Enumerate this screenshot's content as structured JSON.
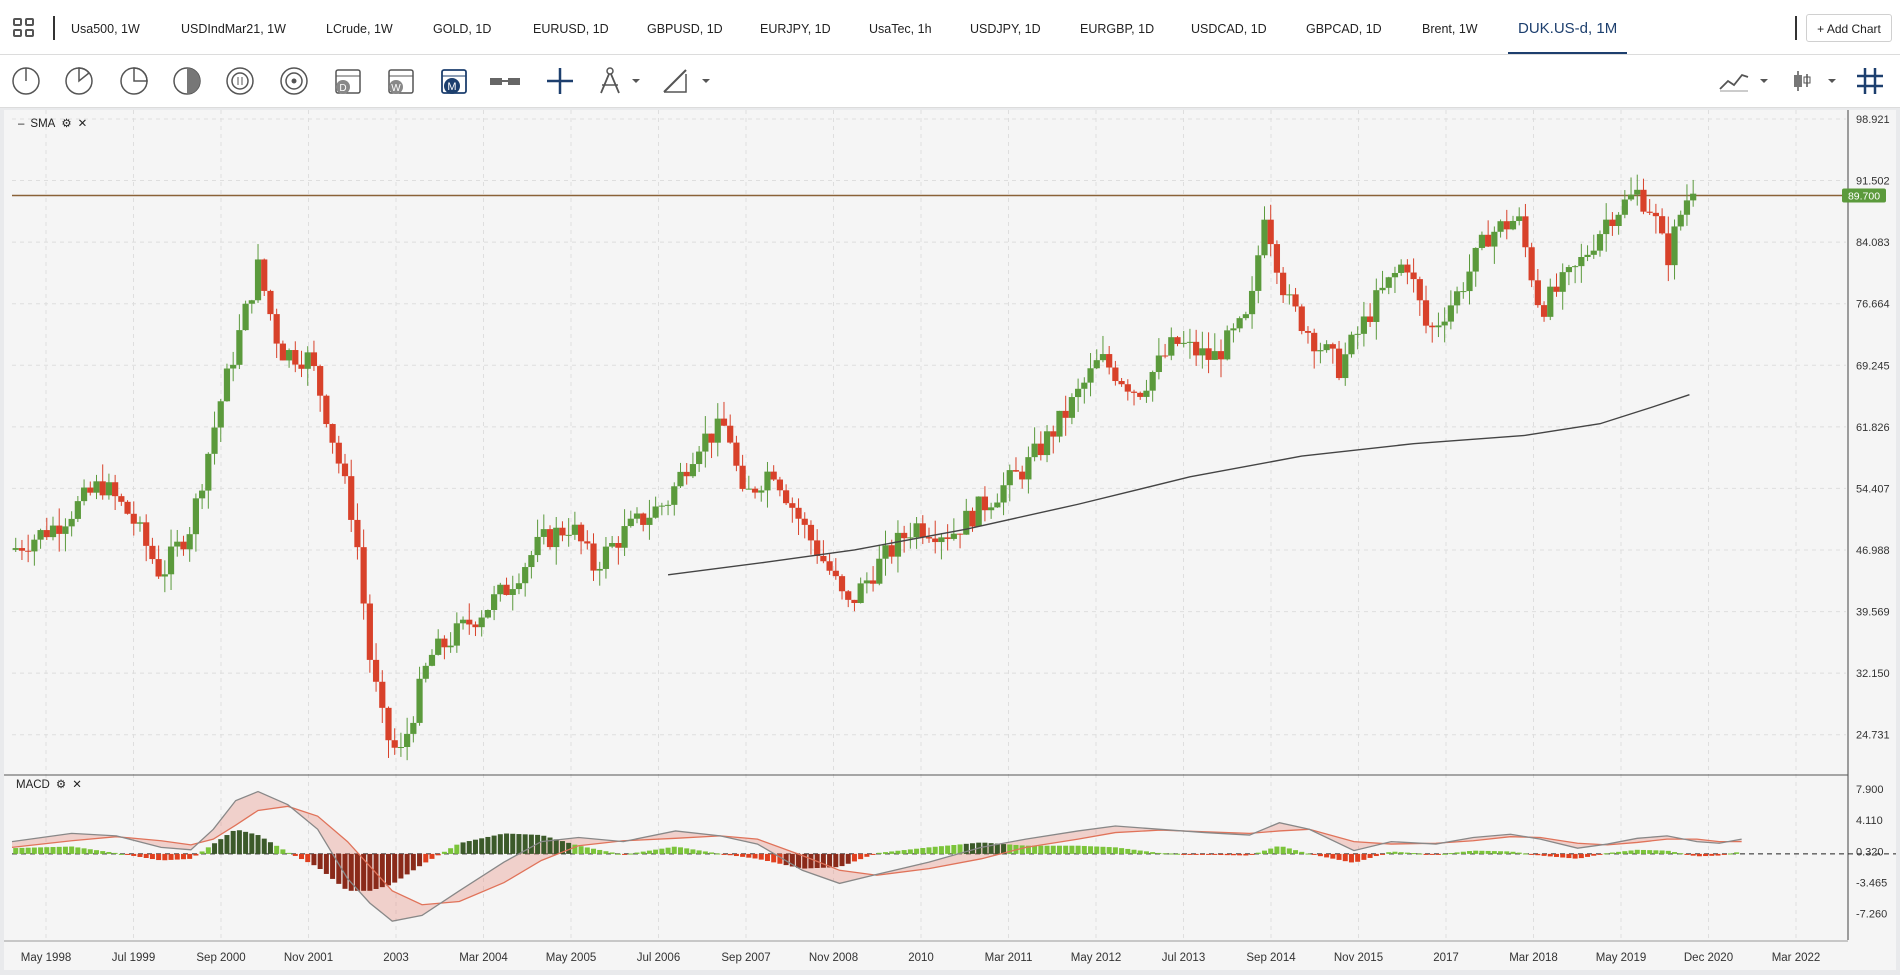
{
  "tabs": [
    {
      "label": "Usa500, 1W"
    },
    {
      "label": "USDIndMar21, 1W"
    },
    {
      "label": "LCrude, 1W"
    },
    {
      "label": "GOLD, 1D"
    },
    {
      "label": "EURUSD, 1D"
    },
    {
      "label": "GBPUSD, 1D"
    },
    {
      "label": "EURJPY, 1D"
    },
    {
      "label": "UsaTec, 1h"
    },
    {
      "label": "USDJPY, 1D"
    },
    {
      "label": "EURGBP, 1D"
    },
    {
      "label": "USDCAD, 1D"
    },
    {
      "label": "GBPCAD, 1D"
    },
    {
      "label": "Brent, 1W"
    },
    {
      "label": "DUK.US-d, 1M"
    }
  ],
  "active_tab": "DUK.US-d, 1M",
  "add_chart_label": "+ Add Chart",
  "toolbar": {
    "tools": [
      "crosshair-icon",
      "pie-quarter-icon",
      "pie-half-icon",
      "half-circle-icon",
      "circle-lines-icon",
      "circle-dot-icon",
      "calendar-d-icon",
      "calendar-w-icon",
      "calendar-m-icon",
      "bar-connector-icon",
      "crosshair-plus-icon",
      "compass-icon",
      "pencil-icon"
    ],
    "right_tools": [
      "line-chart-type-icon",
      "candle-type-icon",
      "grid-icon"
    ]
  },
  "price_indicator": {
    "name": "SMA"
  },
  "macd_indicator": {
    "name": "MACD"
  },
  "colors": {
    "up": "#5b9a3c",
    "down": "#d8412a",
    "sma": "#444444",
    "hline": "#8a6238",
    "price_tag": "#5b9a3c",
    "macd_line": "#888888",
    "signal_line": "#e0735a"
  },
  "chart_data": {
    "type": "candlestick",
    "symbol": "DUK.US-d, 1M",
    "price_axis": {
      "ticks": [
        "98.921",
        "91.502",
        "84.083",
        "76.664",
        "69.245",
        "61.826",
        "54.407",
        "46.988",
        "39.569",
        "32.150",
        "24.731"
      ],
      "ylim": [
        20,
        100
      ]
    },
    "current_price_label": "89.700",
    "horizontal_line": 89.7,
    "time_axis": {
      "ticks": [
        "May 1998",
        "Jul 1999",
        "Sep 2000",
        "Nov 2001",
        "2003",
        "Mar 2004",
        "May 2005",
        "Jul 2006",
        "Sep 2007",
        "Nov 2008",
        "2010",
        "Mar 2011",
        "May 2012",
        "Jul 2013",
        "Sep 2014",
        "Nov 2015",
        "2017",
        "Mar 2018",
        "May 2019",
        "Dec 2020",
        "Mar 2022"
      ],
      "range": [
        1998.2,
        2022.8
      ]
    },
    "sma_points": [
      [
        2007.0,
        44
      ],
      [
        2008.3,
        45.5
      ],
      [
        2009.5,
        47
      ],
      [
        2011.0,
        49.5
      ],
      [
        2012.5,
        52.5
      ],
      [
        2014.0,
        55.8
      ],
      [
        2015.5,
        58.3
      ],
      [
        2017.0,
        59.8
      ],
      [
        2018.5,
        60.8
      ],
      [
        2019.5,
        62.2
      ],
      [
        2020.2,
        64.2
      ],
      [
        2020.7,
        65.7
      ]
    ],
    "macd_axis": {
      "ticks": [
        "7.900",
        "4.110",
        "0.320",
        "-3.465",
        "-7.260"
      ],
      "ylim": [
        -10.5,
        9.5
      ]
    },
    "macd_line": [
      [
        1998.2,
        1.5
      ],
      [
        1999.0,
        2.5
      ],
      [
        1999.6,
        2.2
      ],
      [
        2000.2,
        0.8
      ],
      [
        2000.6,
        0.5
      ],
      [
        2000.9,
        3
      ],
      [
        2001.2,
        6.5
      ],
      [
        2001.5,
        7.6
      ],
      [
        2001.9,
        6
      ],
      [
        2002.3,
        3
      ],
      [
        2002.7,
        -3
      ],
      [
        2003.0,
        -6
      ],
      [
        2003.3,
        -8.2
      ],
      [
        2003.7,
        -7.5
      ],
      [
        2004.2,
        -4.5
      ],
      [
        2004.8,
        -1
      ],
      [
        2005.3,
        1.5
      ],
      [
        2005.8,
        2
      ],
      [
        2006.4,
        1.5
      ],
      [
        2007.1,
        2.8
      ],
      [
        2007.7,
        2.2
      ],
      [
        2008.2,
        1.2
      ],
      [
        2008.8,
        -2
      ],
      [
        2009.3,
        -3.6
      ],
      [
        2009.8,
        -2.5
      ],
      [
        2010.5,
        -1
      ],
      [
        2011.2,
        0.8
      ],
      [
        2011.8,
        1.8
      ],
      [
        2012.5,
        2.8
      ],
      [
        2013.0,
        3.4
      ],
      [
        2013.6,
        3
      ],
      [
        2014.2,
        2.6
      ],
      [
        2014.8,
        2.3
      ],
      [
        2015.2,
        3.8
      ],
      [
        2015.6,
        3
      ],
      [
        2016.2,
        0.4
      ],
      [
        2016.7,
        1.5
      ],
      [
        2017.3,
        1.2
      ],
      [
        2017.8,
        2
      ],
      [
        2018.3,
        2.4
      ],
      [
        2018.7,
        1.8
      ],
      [
        2019.2,
        0.7
      ],
      [
        2019.6,
        1.2
      ],
      [
        2020.0,
        1.9
      ],
      [
        2020.4,
        2.2
      ],
      [
        2020.8,
        1.5
      ],
      [
        2021.1,
        1.3
      ],
      [
        2021.4,
        1.8
      ]
    ],
    "signal_line": [
      [
        1998.2,
        0.8
      ],
      [
        1999.0,
        1.6
      ],
      [
        1999.6,
        2.1
      ],
      [
        2000.2,
        1.6
      ],
      [
        2000.6,
        1.1
      ],
      [
        2000.9,
        1.8
      ],
      [
        2001.2,
        3.5
      ],
      [
        2001.5,
        5.3
      ],
      [
        2001.9,
        5.8
      ],
      [
        2002.3,
        4.6
      ],
      [
        2002.7,
        1.5
      ],
      [
        2003.0,
        -1.5
      ],
      [
        2003.3,
        -4.5
      ],
      [
        2003.7,
        -6.2
      ],
      [
        2004.2,
        -5.8
      ],
      [
        2004.8,
        -3.5
      ],
      [
        2005.3,
        -0.8
      ],
      [
        2005.8,
        1
      ],
      [
        2006.4,
        1.6
      ],
      [
        2007.1,
        1.9
      ],
      [
        2007.7,
        2.2
      ],
      [
        2008.2,
        1.8
      ],
      [
        2008.8,
        -0.2
      ],
      [
        2009.3,
        -2
      ],
      [
        2009.8,
        -2.6
      ],
      [
        2010.5,
        -1.8
      ],
      [
        2011.2,
        -0.6
      ],
      [
        2011.8,
        0.8
      ],
      [
        2012.5,
        1.8
      ],
      [
        2013.0,
        2.6
      ],
      [
        2013.6,
        2.9
      ],
      [
        2014.2,
        2.7
      ],
      [
        2014.8,
        2.5
      ],
      [
        2015.2,
        2.8
      ],
      [
        2015.6,
        3
      ],
      [
        2016.2,
        1.5
      ],
      [
        2016.7,
        1.2
      ],
      [
        2017.3,
        1.3
      ],
      [
        2017.8,
        1.6
      ],
      [
        2018.3,
        2.1
      ],
      [
        2018.7,
        2
      ],
      [
        2019.2,
        1.3
      ],
      [
        2019.6,
        1.1
      ],
      [
        2020.0,
        1.4
      ],
      [
        2020.4,
        1.8
      ],
      [
        2020.8,
        1.8
      ],
      [
        2021.1,
        1.5
      ],
      [
        2021.4,
        1.5
      ]
    ]
  }
}
